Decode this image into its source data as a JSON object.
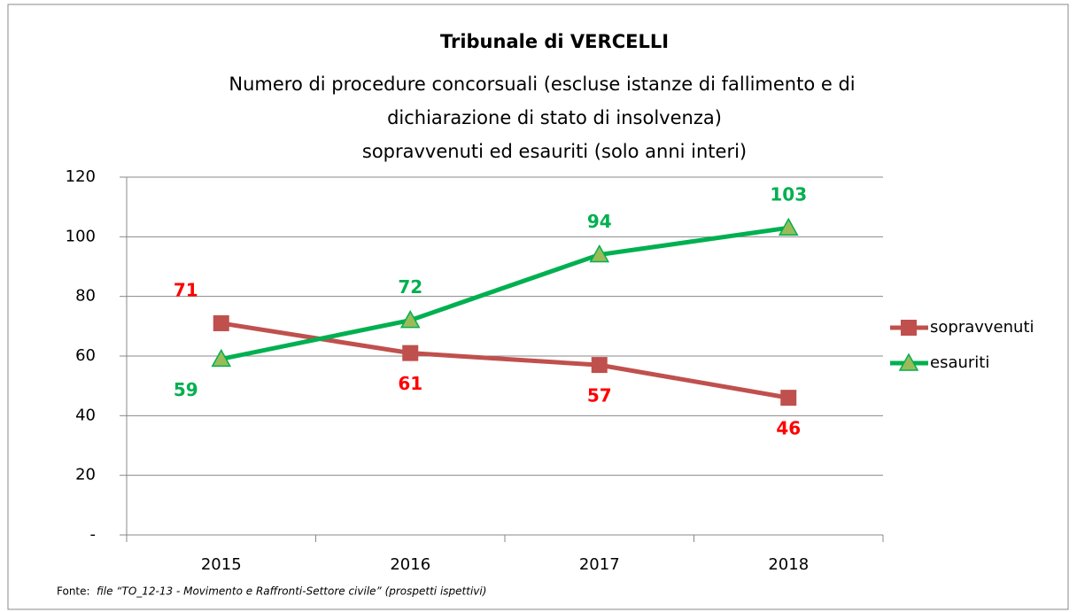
{
  "chart_data": {
    "type": "line",
    "title": "Tribunale di VERCELLI",
    "subtitle": [
      "Numero di procedure concorsuali (escluse istanze di fallimento e di",
      "dichiarazione di stato di insolvenza)",
      "sopravvenuti ed esauriti (solo anni interi)"
    ],
    "categories": [
      "2015",
      "2016",
      "2017",
      "2018"
    ],
    "series": [
      {
        "name": "sopravvenuti",
        "color": "#c0504d",
        "label_color": "#ff0000",
        "marker": "square",
        "values": [
          71,
          61,
          57,
          46
        ]
      },
      {
        "name": "esauriti",
        "color": "#00b050",
        "label_color": "#00b050",
        "marker": "triangle",
        "marker_fill": "#9bbb59",
        "values": [
          59,
          72,
          94,
          103
        ]
      }
    ],
    "ylim": [
      0,
      120
    ],
    "yticks": [
      {
        "value": 0,
        "label": "-"
      },
      20,
      40,
      60,
      80,
      100,
      120
    ],
    "grid": true,
    "legend": "right",
    "source_label": "Fonte:",
    "source": "file “TO_12-13 - Movimento e Raffronti-Settore civile” (prospetti ispettivi)"
  }
}
